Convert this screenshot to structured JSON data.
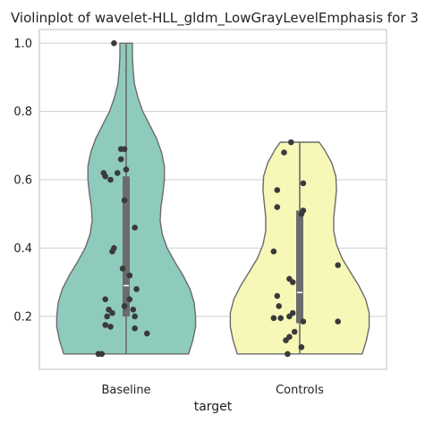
{
  "chart_data": {
    "type": "violin",
    "title": "Violinplot of wavelet-HLL_gldm_LowGrayLevelEmphasis for 3",
    "xlabel": "target",
    "ylabel": "",
    "ylim": [
      0.045,
      1.04
    ],
    "yticks": [
      0.2,
      0.4,
      0.6,
      0.8,
      1.0
    ],
    "ytick_labels": [
      "0.2",
      "0.4",
      "0.6",
      "0.8",
      "1.0"
    ],
    "grid": true,
    "categories": [
      "Baseline",
      "Controls"
    ],
    "series": [
      {
        "category": "Baseline",
        "color": "#8ecbbd",
        "quartiles": {
          "q1": 0.2,
          "median": 0.29,
          "q3": 0.61
        },
        "whiskers": [
          0.09,
          1.0
        ],
        "violin_range": [
          0.09,
          1.0
        ],
        "density_profile": [
          [
            0.09,
            0.9
          ],
          [
            0.13,
            0.96
          ],
          [
            0.17,
            1.0
          ],
          [
            0.2,
            1.0
          ],
          [
            0.24,
            0.98
          ],
          [
            0.28,
            0.92
          ],
          [
            0.32,
            0.82
          ],
          [
            0.36,
            0.7
          ],
          [
            0.4,
            0.59
          ],
          [
            0.44,
            0.52
          ],
          [
            0.48,
            0.49
          ],
          [
            0.52,
            0.5
          ],
          [
            0.56,
            0.53
          ],
          [
            0.6,
            0.55
          ],
          [
            0.64,
            0.55
          ],
          [
            0.68,
            0.51
          ],
          [
            0.72,
            0.44
          ],
          [
            0.76,
            0.34
          ],
          [
            0.8,
            0.24
          ],
          [
            0.84,
            0.17
          ],
          [
            0.88,
            0.12
          ],
          [
            0.92,
            0.1
          ],
          [
            0.96,
            0.09
          ],
          [
            1.0,
            0.09
          ]
        ],
        "points": [
          {
            "x": -0.07,
            "y": 1.0
          },
          {
            "x": -0.03,
            "y": 0.69
          },
          {
            "x": -0.01,
            "y": 0.69
          },
          {
            "x": -0.13,
            "y": 0.62
          },
          {
            "x": -0.12,
            "y": 0.61
          },
          {
            "x": -0.05,
            "y": 0.62
          },
          {
            "x": 0.0,
            "y": 0.63
          },
          {
            "x": -0.03,
            "y": 0.66
          },
          {
            "x": -0.09,
            "y": 0.6
          },
          {
            "x": -0.01,
            "y": 0.54
          },
          {
            "x": 0.05,
            "y": 0.46
          },
          {
            "x": -0.07,
            "y": 0.4
          },
          {
            "x": -0.08,
            "y": 0.39
          },
          {
            "x": -0.02,
            "y": 0.34
          },
          {
            "x": 0.02,
            "y": 0.32
          },
          {
            "x": 0.06,
            "y": 0.28
          },
          {
            "x": -0.12,
            "y": 0.25
          },
          {
            "x": 0.02,
            "y": 0.25
          },
          {
            "x": -0.1,
            "y": 0.22
          },
          {
            "x": -0.01,
            "y": 0.23
          },
          {
            "x": 0.04,
            "y": 0.22
          },
          {
            "x": -0.08,
            "y": 0.21
          },
          {
            "x": -0.11,
            "y": 0.2
          },
          {
            "x": 0.05,
            "y": 0.2
          },
          {
            "x": -0.12,
            "y": 0.175
          },
          {
            "x": -0.09,
            "y": 0.17
          },
          {
            "x": 0.05,
            "y": 0.165
          },
          {
            "x": 0.12,
            "y": 0.15
          },
          {
            "x": -0.16,
            "y": 0.09
          },
          {
            "x": -0.14,
            "y": 0.09
          }
        ]
      },
      {
        "category": "Controls",
        "color": "#f7f7b8",
        "quartiles": {
          "q1": 0.18,
          "median": 0.27,
          "q3": 0.51
        },
        "whiskers": [
          0.09,
          0.71
        ],
        "violin_range": [
          0.09,
          0.71
        ],
        "density_profile": [
          [
            0.09,
            0.9
          ],
          [
            0.13,
            0.96
          ],
          [
            0.17,
            1.0
          ],
          [
            0.21,
            1.0
          ],
          [
            0.25,
            0.95
          ],
          [
            0.29,
            0.85
          ],
          [
            0.33,
            0.73
          ],
          [
            0.37,
            0.61
          ],
          [
            0.41,
            0.53
          ],
          [
            0.45,
            0.49
          ],
          [
            0.49,
            0.49
          ],
          [
            0.53,
            0.51
          ],
          [
            0.57,
            0.53
          ],
          [
            0.61,
            0.52
          ],
          [
            0.65,
            0.46
          ],
          [
            0.69,
            0.35
          ],
          [
            0.71,
            0.28
          ]
        ],
        "points": [
          {
            "x": -0.05,
            "y": 0.71
          },
          {
            "x": -0.09,
            "y": 0.68
          },
          {
            "x": 0.02,
            "y": 0.59
          },
          {
            "x": -0.13,
            "y": 0.57
          },
          {
            "x": -0.13,
            "y": 0.52
          },
          {
            "x": 0.02,
            "y": 0.51
          },
          {
            "x": 0.01,
            "y": 0.5
          },
          {
            "x": -0.15,
            "y": 0.39
          },
          {
            "x": 0.22,
            "y": 0.35
          },
          {
            "x": -0.06,
            "y": 0.31
          },
          {
            "x": -0.04,
            "y": 0.3
          },
          {
            "x": -0.13,
            "y": 0.26
          },
          {
            "x": -0.12,
            "y": 0.23
          },
          {
            "x": -0.04,
            "y": 0.21
          },
          {
            "x": -0.06,
            "y": 0.2
          },
          {
            "x": -0.15,
            "y": 0.195
          },
          {
            "x": -0.11,
            "y": 0.195
          },
          {
            "x": 0.02,
            "y": 0.185
          },
          {
            "x": 0.22,
            "y": 0.185
          },
          {
            "x": -0.03,
            "y": 0.155
          },
          {
            "x": -0.06,
            "y": 0.14
          },
          {
            "x": -0.08,
            "y": 0.13
          },
          {
            "x": 0.01,
            "y": 0.11
          },
          {
            "x": -0.07,
            "y": 0.09
          }
        ]
      }
    ]
  }
}
